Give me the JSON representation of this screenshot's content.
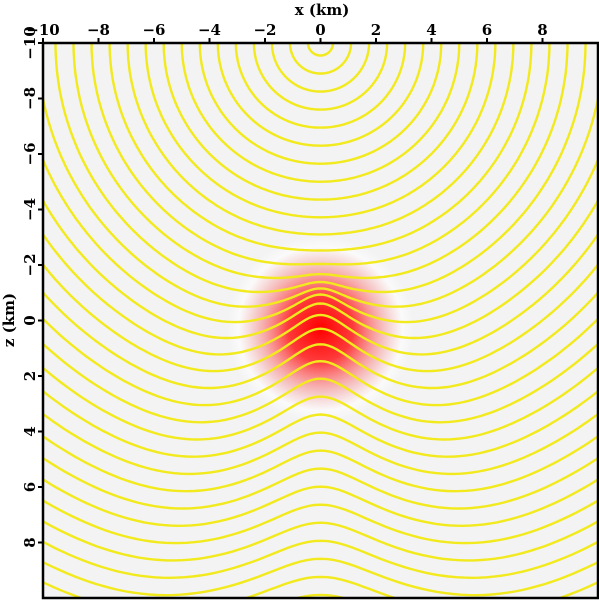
{
  "chart_data": {
    "type": "heatmap",
    "title": "",
    "xlabel": "x (km)",
    "ylabel": "z (km)",
    "xlim": [
      -10,
      10
    ],
    "zlim": [
      -10,
      10
    ],
    "x_axis_position": "top",
    "z_axis_direction": "down",
    "x_ticks": [
      -10,
      -8,
      -6,
      -4,
      -2,
      0,
      2,
      4,
      6,
      8
    ],
    "x_tick_labels": [
      "−10",
      "−8",
      "−6",
      "−4",
      "−2",
      "0",
      "2",
      "4",
      "6",
      "8"
    ],
    "z_ticks": [
      -10,
      -8,
      -6,
      -4,
      -2,
      0,
      2,
      4,
      6,
      8
    ],
    "z_tick_labels": [
      "−10",
      "−8",
      "−6",
      "−4",
      "−2",
      "0",
      "2",
      "4",
      "6",
      "8"
    ],
    "background": {
      "description": "velocity anomaly",
      "center": [
        0,
        0.3
      ],
      "radius_km": 3,
      "colors": {
        "base": "#f3f3f3",
        "peak": "#ff0000"
      }
    },
    "wavefronts": {
      "source": [
        0,
        -10
      ],
      "color": "#f2ea1c",
      "count": 35,
      "spacing_km": 0.65,
      "first_radius_km": 0.45
    }
  }
}
